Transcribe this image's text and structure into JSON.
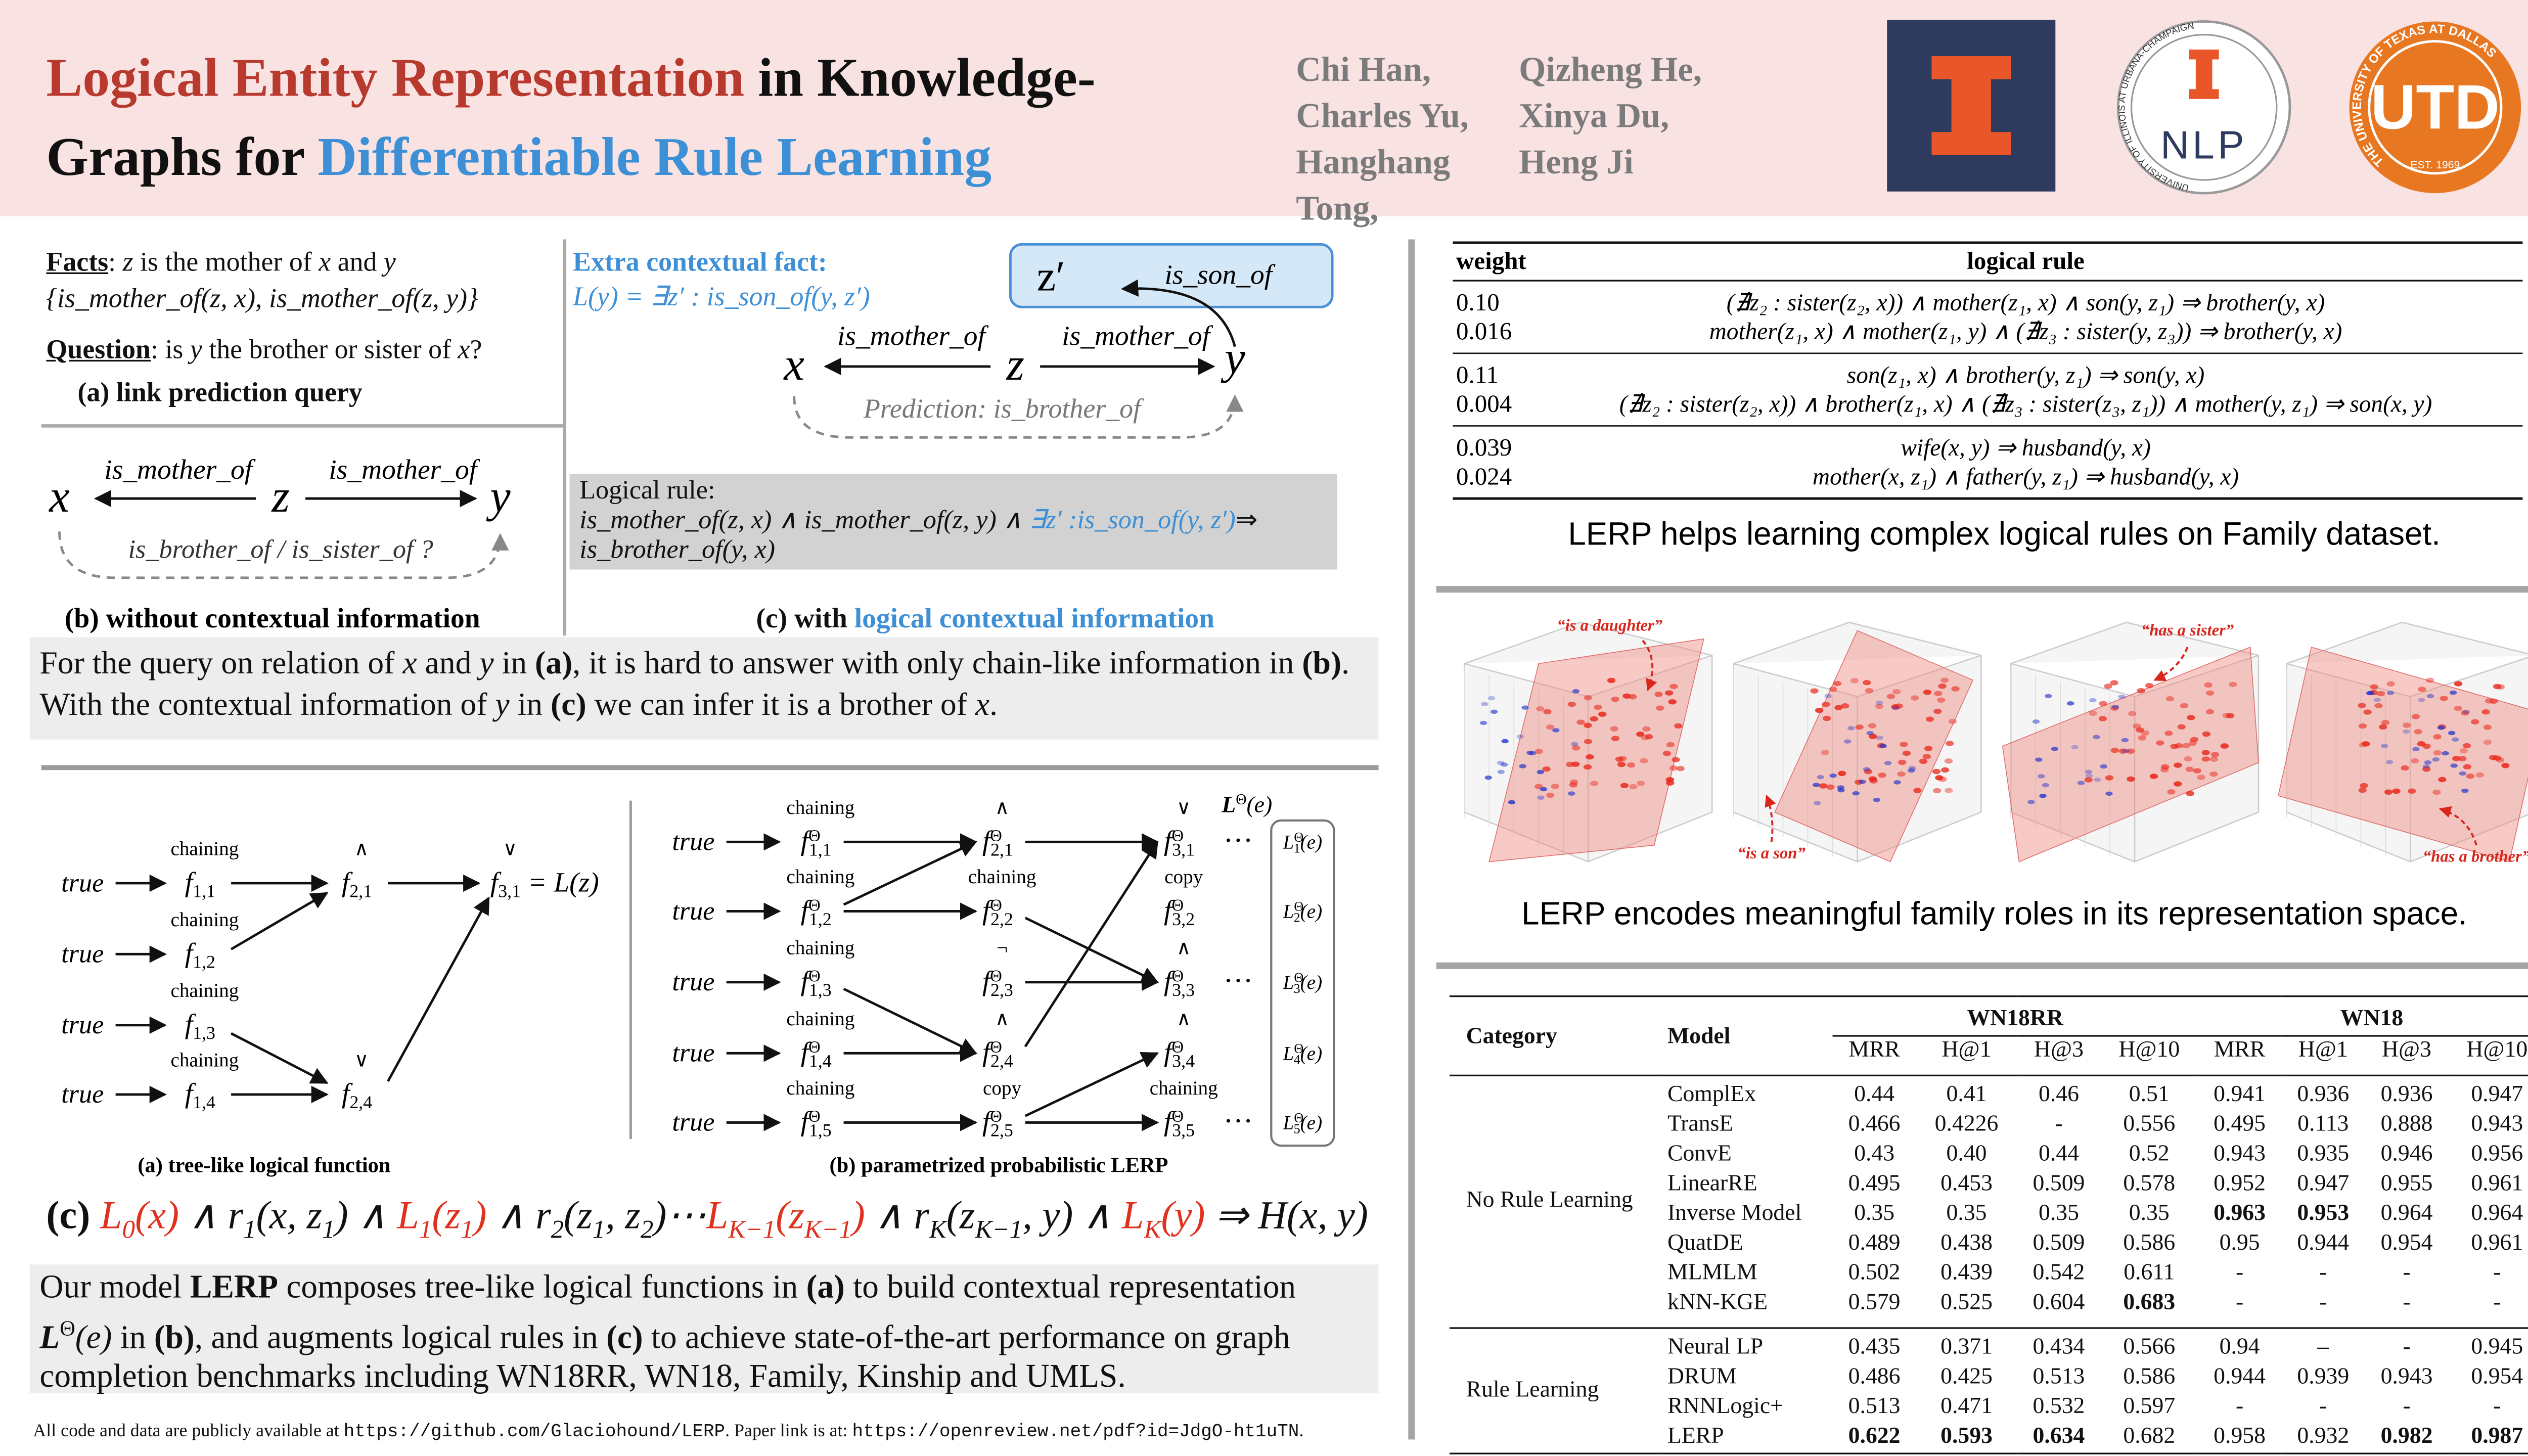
{
  "header": {
    "title": [
      {
        "t": "Logical Entity Representation",
        "c": "red"
      },
      {
        "t": " in Knowledge-Graphs for "
      },
      {
        "t": "Differentiable Rule Learning",
        "c": "blue"
      }
    ],
    "authors": [
      "Chi Han,",
      "Qizheng He,",
      "Charles Yu,",
      "Xinya Du,",
      "Hanghang Tong,",
      "Heng Ji"
    ],
    "logos": {
      "nlp_ring": "UNIVERSITY OF ILLINOIS AT URBANA-CHAMPAIGN",
      "nlp": "NLP",
      "utd_ring": "THE UNIVERSITY OF TEXAS AT DALLAS",
      "utd_est": "EST. 1969",
      "utd": "UTD"
    }
  },
  "figure1": {
    "facts": [
      {
        "t": "Facts",
        "b": 1,
        "u": 1
      },
      {
        "t": ": "
      },
      {
        "t": "z",
        "i": 1
      },
      {
        "t": " is the mother of "
      },
      {
        "t": "x",
        "i": 1
      },
      {
        "t": " and "
      },
      {
        "t": "y",
        "i": 1
      }
    ],
    "fact_set": "{is_mother_of(z, x), is_mother_of(z, y)}",
    "question": [
      {
        "t": "Question",
        "b": 1,
        "u": 1
      },
      {
        "t": ": is "
      },
      {
        "t": "y",
        "i": 1
      },
      {
        "t": " the brother or sister of "
      },
      {
        "t": "x",
        "i": 1
      },
      {
        "t": "?"
      }
    ],
    "caption_a": "(a) link prediction query",
    "b": {
      "x": "x",
      "z": "z",
      "y": "y",
      "rel1": "is_mother_of",
      "rel2": "is_mother_of",
      "query": "is_brother_of / is_sister_of ?",
      "caption": "(b) without contextual information"
    },
    "c": {
      "extra": "Extra contextual fact:",
      "context": "L(y) = ∃z′ : is_son_of(y, z′)",
      "z2": "z′",
      "son": "is_son_of",
      "x": "x",
      "z": "z",
      "y": "y",
      "rel1": "is_mother_of",
      "rel2": "is_mother_of",
      "prediction": "Prediction: is_brother_of",
      "rule_title": "Logical rule:",
      "rule": [
        {
          "t": "is_mother_of(z, x) ∧ is_mother_of(z, y) ∧ ",
          "i": 1
        },
        {
          "t": "∃z′ :is_son_of(y, z′)",
          "i": 1,
          "c": "blue"
        },
        {
          "t": "⇒"
        },
        {
          "t": "is_brother_of(y, x)",
          "i": 1
        }
      ],
      "caption": [
        {
          "t": "(c) with "
        },
        {
          "t": "logical contextual information",
          "c": "blue"
        }
      ]
    },
    "note": [
      {
        "t": "For the query on relation of "
      },
      {
        "t": "x",
        "i": 1
      },
      {
        "t": " and "
      },
      {
        "t": "y",
        "i": 1
      },
      {
        "t": " in "
      },
      {
        "t": "(a)",
        "b": 1
      },
      {
        "t": ", it is hard to answer with only chain-like information in "
      },
      {
        "t": "(b)",
        "b": 1
      },
      {
        "t": ". With the contextual information of "
      },
      {
        "t": "y",
        "i": 1
      },
      {
        "t": " in "
      },
      {
        "t": "(c)",
        "b": 1
      },
      {
        "t": " we can infer it is a brother of "
      },
      {
        "t": "x",
        "i": 1
      },
      {
        "t": "."
      }
    ]
  },
  "figure2": {
    "tree": {
      "f": "f",
      "inputs": [
        "true",
        "true",
        "true",
        "true"
      ],
      "funcs": [
        {
          "op": "chaining",
          "sub": "1,1"
        },
        {
          "op": "chaining",
          "sub": "1,2"
        },
        {
          "op": "chaining",
          "sub": "1,3"
        },
        {
          "op": "chaining",
          "sub": "1,4"
        }
      ],
      "level2": [
        {
          "op": "∧",
          "sub": "2,1"
        },
        {
          "op": "∨",
          "sub": "2,4"
        }
      ],
      "out": {
        "op": "∨",
        "sub": "3,1",
        "eq": " = L(z)"
      },
      "caption": "(a) tree-like logical function"
    },
    "lerp": {
      "f": "f",
      "theta": "Θ",
      "inputs": [
        "true",
        "true",
        "true",
        "true",
        "true"
      ],
      "col1": [
        {
          "op": "chaining",
          "sub": "1,1"
        },
        {
          "op": "chaining",
          "sub": "1,2"
        },
        {
          "op": "chaining",
          "sub": "1,3"
        },
        {
          "op": "chaining",
          "sub": "1,4"
        },
        {
          "op": "chaining",
          "sub": "1,5"
        }
      ],
      "col2": [
        {
          "op": "∧",
          "sub": "2,1"
        },
        {
          "op": "chaining",
          "sub": "2,2"
        },
        {
          "op": "¬",
          "sub": "2,3"
        },
        {
          "op": "∧",
          "sub": "2,4"
        },
        {
          "op": "copy",
          "sub": "2,5"
        }
      ],
      "col3": [
        {
          "op": "∨",
          "sub": "3,1"
        },
        {
          "op": "copy",
          "sub": "3,2"
        },
        {
          "op": "∧",
          "sub": "3,3"
        },
        {
          "op": "∧",
          "sub": "3,4"
        },
        {
          "op": "chaining",
          "sub": "3,5"
        }
      ],
      "dots": "···",
      "head": [
        {
          "t": "L",
          "b": 1,
          "i": 1
        },
        {
          "t": "Θ",
          "sup": 1
        },
        {
          "t": "(e)",
          "i": 1
        }
      ],
      "L": "L",
      "e": "(e)",
      "outputs": [
        "1",
        "2",
        "3",
        "4",
        "5"
      ],
      "caption": "(b) parametrized probabilistic LERP"
    },
    "equation": [
      {
        "t": "(c)  ",
        "b": 1,
        "n": 1
      },
      {
        "t": "L",
        "c": "red"
      },
      {
        "t": "0",
        "sub": 1,
        "c": "red"
      },
      {
        "t": "(x)",
        "c": "red"
      },
      {
        "t": " ∧ r"
      },
      {
        "t": "1",
        "sub": 1
      },
      {
        "t": "(x, z"
      },
      {
        "t": "1",
        "sub": 1
      },
      {
        "t": ") ∧ "
      },
      {
        "t": "L",
        "c": "red"
      },
      {
        "t": "1",
        "sub": 1,
        "c": "red"
      },
      {
        "t": "(z",
        "c": "red"
      },
      {
        "t": "1",
        "sub": 1,
        "c": "red"
      },
      {
        "t": ")",
        "c": "red"
      },
      {
        "t": " ∧ r"
      },
      {
        "t": "2",
        "sub": 1
      },
      {
        "t": "(z"
      },
      {
        "t": "1",
        "sub": 1
      },
      {
        "t": ", z"
      },
      {
        "t": "2",
        "sub": 1
      },
      {
        "t": ")⋯"
      },
      {
        "t": "L",
        "c": "red"
      },
      {
        "t": "K−1",
        "sub": 1,
        "c": "red"
      },
      {
        "t": "(z",
        "c": "red"
      },
      {
        "t": "K−1",
        "sub": 1,
        "c": "red"
      },
      {
        "t": ")",
        "c": "red"
      },
      {
        "t": " ∧ r"
      },
      {
        "t": "K",
        "sub": 1
      },
      {
        "t": "(z"
      },
      {
        "t": "K−1",
        "sub": 1
      },
      {
        "t": ", y) ∧ "
      },
      {
        "t": "L",
        "c": "red"
      },
      {
        "t": "K",
        "sub": 1,
        "c": "red"
      },
      {
        "t": "(y)",
        "c": "red"
      },
      {
        "t": " ⇒ H(x, y)"
      }
    ],
    "summary": [
      {
        "t": "Our model "
      },
      {
        "t": "LERP",
        "b": 1
      },
      {
        "t": " composes tree-like logical functions in "
      },
      {
        "t": "(a)",
        "b": 1
      },
      {
        "t": " to build contextual representation "
      },
      {
        "t": "L",
        "b": 1,
        "i": 1
      },
      {
        "t": "Θ",
        "sup": 1
      },
      {
        "t": "(e)",
        "i": 1
      },
      {
        "t": " in "
      },
      {
        "t": "(b)",
        "b": 1
      },
      {
        "t": ", and augments logical rules in "
      },
      {
        "t": "(c)",
        "b": 1
      },
      {
        "t": " to achieve state-of-the-art performance on graph completion benchmarks including WN18RR, WN18, Family, Kinship and UMLS."
      }
    ]
  },
  "footer": [
    {
      "t": "All code and data are publicly available at  "
    },
    {
      "t": "https://github.com/Glaciohound/LERP",
      "m": 1
    },
    {
      "t": ".  Paper link is at:  "
    },
    {
      "t": "https://openreview.net/pdf?id=JdgO-ht1uTN",
      "m": 1
    },
    {
      "t": "."
    }
  ],
  "rules": {
    "header": [
      "weight",
      "logical rule"
    ],
    "groups": [
      [
        [
          "0.10",
          "(∄z₂ : sister(z₂, x)) ∧ mother(z₁, x) ∧ son(y, z₁) ⇒ brother(y, x)"
        ],
        [
          "0.016",
          "mother(z₁, x) ∧ mother(z₁, y) ∧ (∄z₃ : sister(y, z₃)) ⇒ brother(y, x)"
        ]
      ],
      [
        [
          "0.11",
          "son(z₁, x) ∧ brother(y, z₁) ⇒ son(y, x)"
        ],
        [
          "0.004",
          "(∄z₂ : sister(z₂, x)) ∧ brother(z₁, x) ∧ (∄z₃ : sister(z₃, z₁)) ∧ mother(y, z₁) ⇒ son(x, y)"
        ]
      ],
      [
        [
          "0.039",
          "wife(x, y) ⇒ husband(y, x)"
        ],
        [
          "0.024",
          "mother(x, z₁) ∧ father(y, z₁) ⇒ husband(y, x)"
        ]
      ]
    ],
    "caption": "LERP helps learning complex logical rules on Family dataset."
  },
  "embedding": {
    "annotations": [
      "“is a daughter”",
      "“is a son”",
      "“has a sister”",
      "“has a brother”"
    ],
    "caption": "LERP encodes meaningful family roles in its representation space."
  },
  "results": {
    "header": [
      "Category",
      "Model"
    ],
    "datasets": [
      "WN18RR",
      "WN18"
    ],
    "metrics": [
      "MRR",
      "H@1",
      "H@3",
      "H@10",
      "MRR",
      "H@1",
      "H@3",
      "H@10"
    ],
    "groups": [
      {
        "category": "No Rule Learning",
        "rows": [
          {
            "model": "ComplEx",
            "values": [
              "0.44",
              "0.41",
              "0.46",
              "0.51",
              "0.941",
              "0.936",
              "0.936",
              "0.947"
            ]
          },
          {
            "model": "TransE",
            "values": [
              "0.466",
              "0.4226",
              "-",
              "0.556",
              "0.495",
              "0.113",
              "0.888",
              "0.943"
            ]
          },
          {
            "model": "ConvE",
            "values": [
              "0.43",
              "0.40",
              "0.44",
              "0.52",
              "0.943",
              "0.935",
              "0.946",
              "0.956"
            ]
          },
          {
            "model": "LinearRE",
            "values": [
              "0.495",
              "0.453",
              "0.509",
              "0.578",
              "0.952",
              "0.947",
              "0.955",
              "0.961"
            ]
          },
          {
            "model": "Inverse Model",
            "values": [
              "0.35",
              "0.35",
              "0.35",
              "0.35",
              "0.963",
              "0.953",
              "0.964",
              "0.964"
            ],
            "bold": [
              4,
              5
            ]
          },
          {
            "model": "QuatDE",
            "values": [
              "0.489",
              "0.438",
              "0.509",
              "0.586",
              "0.95",
              "0.944",
              "0.954",
              "0.961"
            ]
          },
          {
            "model": "MLMLM",
            "values": [
              "0.502",
              "0.439",
              "0.542",
              "0.611",
              "-",
              "-",
              "-",
              "-"
            ]
          },
          {
            "model": "kNN-KGE",
            "values": [
              "0.579",
              "0.525",
              "0.604",
              "0.683",
              "-",
              "-",
              "-",
              "-"
            ],
            "bold": [
              3
            ]
          }
        ]
      },
      {
        "category": "Rule Learning",
        "rows": [
          {
            "model": "Neural LP",
            "values": [
              "0.435",
              "0.371",
              "0.434",
              "0.566",
              "0.94",
              "–",
              "-",
              "0.945"
            ]
          },
          {
            "model": "DRUM",
            "values": [
              "0.486",
              "0.425",
              "0.513",
              "0.586",
              "0.944",
              "0.939",
              "0.943",
              "0.954"
            ]
          },
          {
            "model": "RNNLogic+",
            "values": [
              "0.513",
              "0.471",
              "0.532",
              "0.597",
              "-",
              "-",
              "-",
              "-"
            ]
          },
          {
            "model": "LERP",
            "values": [
              "0.622",
              "0.593",
              "0.634",
              "0.682",
              "0.958",
              "0.932",
              "0.982",
              "0.987"
            ],
            "bold": [
              0,
              1,
              2,
              6,
              7
            ]
          }
        ]
      }
    ]
  }
}
